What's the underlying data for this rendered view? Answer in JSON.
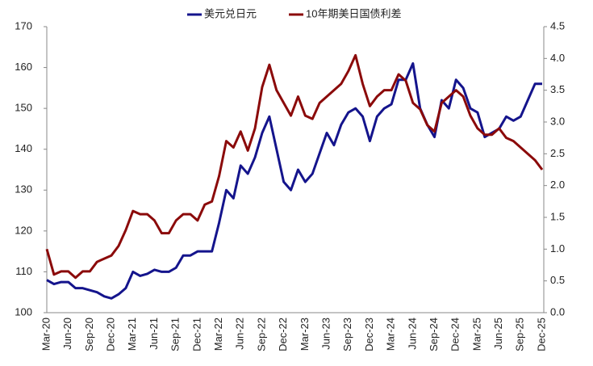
{
  "chart_data": {
    "type": "line",
    "categories": [
      "Mar-20",
      null,
      null,
      "Jun-20",
      null,
      null,
      "Sep-20",
      null,
      null,
      "Dec-20",
      null,
      null,
      "Mar-21",
      null,
      null,
      "Jun-21",
      null,
      null,
      "Sep-21",
      null,
      null,
      "Dec-21",
      null,
      null,
      "Mar-22",
      null,
      null,
      "Jun-22",
      null,
      null,
      "Sep-22",
      null,
      null,
      "Dec-22",
      null,
      null,
      "Mar-23",
      null,
      null,
      "Jun-23",
      null,
      null,
      "Sep-23",
      null,
      null,
      "Dec-23",
      null,
      null,
      "Mar-24",
      null,
      null,
      "Jun-24",
      null,
      null,
      "Sep-24",
      null,
      null,
      "Dec-24",
      null,
      null,
      "Mar-25",
      null,
      null,
      "Jun-25",
      null,
      null,
      "Sep-25",
      null,
      null,
      "Dec-25"
    ],
    "series": [
      {
        "name": "美元兑日元",
        "color": "#14148c",
        "axis": "y",
        "values": [
          108,
          107,
          107.5,
          107.5,
          106,
          106,
          105.5,
          105,
          104,
          103.5,
          104.5,
          106,
          110,
          109,
          109.5,
          110.5,
          110,
          110,
          111,
          114,
          114,
          115,
          115,
          115,
          122,
          130,
          128,
          136,
          134,
          138,
          144,
          148,
          140,
          132,
          130,
          135,
          132,
          134,
          139,
          144,
          141,
          146,
          149,
          150,
          148,
          142,
          148,
          150,
          151,
          157,
          157,
          161,
          150,
          146,
          143,
          152,
          150,
          157,
          155,
          150,
          149,
          143,
          144,
          145,
          148,
          147,
          148,
          152,
          156,
          156
        ]
      },
      {
        "name": "10年期美日国债利差",
        "color": "#8b0a0a",
        "axis": "y2",
        "values": [
          1.0,
          0.6,
          0.65,
          0.65,
          0.55,
          0.65,
          0.65,
          0.8,
          0.85,
          0.9,
          1.05,
          1.3,
          1.6,
          1.55,
          1.55,
          1.45,
          1.25,
          1.25,
          1.45,
          1.55,
          1.55,
          1.45,
          1.7,
          1.75,
          2.15,
          2.7,
          2.6,
          2.85,
          2.55,
          2.9,
          3.55,
          3.9,
          3.5,
          3.3,
          3.1,
          3.4,
          3.1,
          3.05,
          3.3,
          3.4,
          3.5,
          3.6,
          3.8,
          4.05,
          3.6,
          3.25,
          3.4,
          3.5,
          3.5,
          3.75,
          3.65,
          3.3,
          3.2,
          2.95,
          2.85,
          3.3,
          3.4,
          3.5,
          3.4,
          3.1,
          2.9,
          2.8,
          2.8,
          2.9,
          2.75,
          2.7,
          2.6,
          2.5,
          2.4,
          2.25
        ]
      }
    ],
    "ylim": [
      100,
      170
    ],
    "yticks": [
      100,
      110,
      120,
      130,
      140,
      150,
      160,
      170
    ],
    "y2lim": [
      0,
      4.5
    ],
    "y2ticks": [
      {
        "value": 0,
        "label": "0.0"
      },
      0.5,
      {
        "value": 1,
        "label": "1.0"
      },
      1.5,
      {
        "value": 2,
        "label": "2.0"
      },
      2.5,
      {
        "value": 3,
        "label": "3.0"
      },
      3.5,
      {
        "value": 4,
        "label": "4.0"
      },
      4.5
    ],
    "legend": "top",
    "grid": false
  }
}
